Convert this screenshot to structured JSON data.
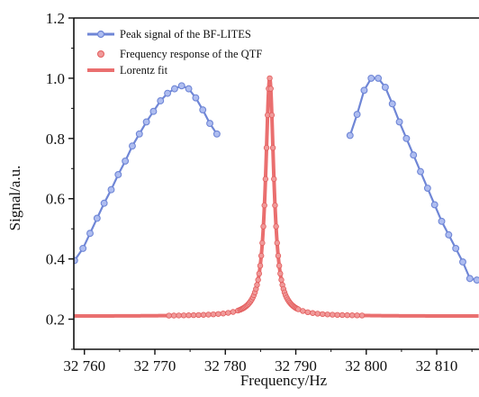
{
  "chart_data": {
    "type": "line",
    "xlabel": "Frequency/Hz",
    "ylabel": "Signal/a.u.",
    "xlim": [
      32758.5,
      32816
    ],
    "ylim": [
      0.1,
      1.2
    ],
    "x_ticks": [
      32760,
      32770,
      32780,
      32790,
      32800,
      32810
    ],
    "x_tick_labels": [
      "32 760",
      "32 770",
      "32 780",
      "32 790",
      "32 800",
      "32 810"
    ],
    "y_ticks": [
      0.2,
      0.4,
      0.6,
      0.8,
      1.0,
      1.2
    ],
    "y_tick_labels": [
      "0.2",
      "0.4",
      "0.6",
      "0.8",
      "1.0",
      "1.2"
    ],
    "grid": false,
    "legend_position": "top-left",
    "series": [
      {
        "name": "Peak signal of the BF-LITES",
        "style": "line-with-markers",
        "color": "#6f86d6",
        "segments": [
          {
            "x": [
              32758.6,
              32759.8,
              32760.8,
              32761.8,
              32762.8,
              32763.8,
              32764.8,
              32765.8,
              32766.8,
              32767.8,
              32768.8,
              32769.8,
              32770.8,
              32771.8,
              32772.8,
              32773.8,
              32774.8,
              32775.8,
              32776.8,
              32777.8,
              32778.8
            ],
            "y": [
              0.395,
              0.435,
              0.485,
              0.535,
              0.585,
              0.63,
              0.68,
              0.725,
              0.775,
              0.815,
              0.855,
              0.89,
              0.925,
              0.95,
              0.965,
              0.975,
              0.965,
              0.935,
              0.895,
              0.85,
              0.815
            ]
          },
          {
            "x": [
              32797.7,
              32798.7,
              32799.7,
              32800.7,
              32801.7,
              32802.7,
              32803.7,
              32804.7,
              32805.7,
              32806.7,
              32807.7,
              32808.7,
              32809.7,
              32810.7,
              32811.7,
              32812.7,
              32813.7,
              32814.7,
              32815.7
            ],
            "y": [
              0.81,
              0.88,
              0.96,
              1.0,
              1.0,
              0.97,
              0.915,
              0.855,
              0.8,
              0.745,
              0.69,
              0.635,
              0.58,
              0.525,
              0.48,
              0.435,
              0.39,
              0.335,
              0.33
            ]
          }
        ]
      },
      {
        "name": "Frequency response of the QTF",
        "style": "markers",
        "color": "#e35d5d",
        "lorentz": {
          "f0": 32786.3,
          "gamma": 0.7,
          "baseline": 0.21,
          "amplitude": 0.79
        }
      },
      {
        "name": "Lorentz fit",
        "style": "line",
        "color": "#ea6f6f",
        "lorentz": {
          "f0": 32786.3,
          "gamma": 0.7,
          "baseline": 0.21,
          "amplitude": 0.79
        }
      }
    ]
  }
}
